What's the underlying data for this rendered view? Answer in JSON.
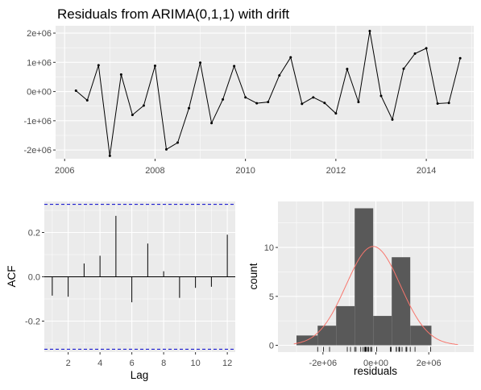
{
  "chart_data": [
    {
      "type": "line",
      "title": "Residuals from ARIMA(0,1,1) with drift",
      "xlabel": "",
      "ylabel": "",
      "xlim": [
        2005.8,
        2015.05
      ],
      "ylim": [
        -2300000,
        2250000
      ],
      "x_ticks": [
        2006,
        2008,
        2010,
        2012,
        2014
      ],
      "x_tick_labels": [
        "2006",
        "2008",
        "2010",
        "2012",
        "2014"
      ],
      "y_ticks": [
        -2000000,
        -1000000,
        0,
        1000000,
        2000000
      ],
      "y_tick_labels": [
        "-2e+06",
        "-1e+06",
        "0e+00",
        "1e+06",
        "2e+06"
      ],
      "grid": true,
      "series": [
        {
          "x": [
            2006.25,
            2006.5,
            2006.75,
            2007.0,
            2007.25,
            2007.5,
            2007.75,
            2008.0,
            2008.25,
            2008.5,
            2008.75,
            2009.0,
            2009.25,
            2009.5,
            2009.75,
            2010.0,
            2010.25,
            2010.5,
            2010.75,
            2011.0,
            2011.25,
            2011.5,
            2011.75,
            2012.0,
            2012.25,
            2012.5,
            2012.75,
            2013.0,
            2013.25,
            2013.5,
            2013.75,
            2014.0,
            2014.25,
            2014.5,
            2014.75
          ],
          "values": [
            30000,
            -300000,
            900000,
            -2200000,
            580000,
            -800000,
            -480000,
            880000,
            -1980000,
            -1750000,
            -570000,
            990000,
            -1080000,
            -270000,
            870000,
            -200000,
            -400000,
            -360000,
            550000,
            1170000,
            -420000,
            -200000,
            -390000,
            -750000,
            770000,
            -360000,
            2070000,
            -150000,
            -960000,
            780000,
            1300000,
            1480000,
            -410000,
            -390000,
            1140000
          ]
        }
      ]
    },
    {
      "type": "bar",
      "title": "",
      "xlabel": "Lag",
      "ylabel": "ACF",
      "xlim": [
        0.5,
        12.5
      ],
      "ylim": [
        -0.34,
        0.34
      ],
      "x_ticks": [
        2,
        4,
        6,
        8,
        10,
        12
      ],
      "x_tick_labels": [
        "2",
        "4",
        "6",
        "8",
        "10",
        "12"
      ],
      "y_ticks": [
        -0.2,
        0.0,
        0.2
      ],
      "y_tick_labels": [
        "-0.2",
        "0.0",
        "0.2"
      ],
      "grid": true,
      "lags": [
        1,
        2,
        3,
        4,
        5,
        6,
        7,
        8,
        9,
        10,
        11,
        12
      ],
      "values": [
        -0.085,
        -0.09,
        0.06,
        0.095,
        0.275,
        -0.115,
        0.15,
        0.025,
        -0.095,
        -0.05,
        -0.045,
        0.19
      ],
      "confidence_bounds": [
        -0.327,
        0.327
      ]
    },
    {
      "type": "bar",
      "title": "",
      "xlabel": "residuals",
      "ylabel": "count",
      "xlim": [
        -3700000,
        3700000
      ],
      "ylim": [
        -0.7,
        14.7
      ],
      "x_ticks": [
        -2000000,
        0,
        2000000
      ],
      "x_tick_labels": [
        "-2e+06",
        "0e+00",
        "2e+06"
      ],
      "y_ticks": [
        0,
        5,
        10
      ],
      "y_tick_labels": [
        "0",
        "5",
        "10"
      ],
      "grid": true,
      "bins": [
        {
          "x0": -3000000,
          "x1": -2200000,
          "count": 1
        },
        {
          "x0": -2200000,
          "x1": -1500000,
          "count": 2
        },
        {
          "x0": -1500000,
          "x1": -800000,
          "count": 4
        },
        {
          "x0": -800000,
          "x1": -100000,
          "count": 14
        },
        {
          "x0": -100000,
          "x1": 600000,
          "count": 3
        },
        {
          "x0": 600000,
          "x1": 1300000,
          "count": 9
        },
        {
          "x0": 1300000,
          "x1": 2100000,
          "count": 2
        }
      ],
      "normal_curve": {
        "mean": -100000,
        "sd": 1030000,
        "peak": 10.1,
        "x_range": [
          -3100000,
          3100000
        ]
      },
      "rug": [
        30000,
        -300000,
        900000,
        -2200000,
        580000,
        -800000,
        -480000,
        880000,
        -1980000,
        -1750000,
        -570000,
        990000,
        -1080000,
        -270000,
        870000,
        -200000,
        -400000,
        -360000,
        550000,
        1170000,
        -420000,
        -200000,
        -390000,
        -750000,
        770000,
        -360000,
        2070000,
        -150000,
        -960000,
        780000,
        1300000,
        1480000,
        -410000,
        -390000,
        1140000
      ]
    }
  ]
}
